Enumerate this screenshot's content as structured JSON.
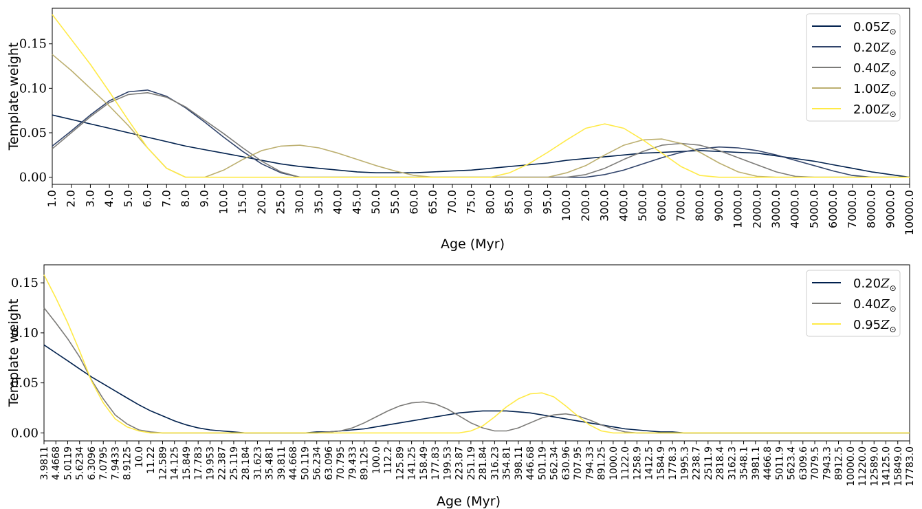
{
  "chart_data": [
    {
      "type": "line",
      "xlabel": "Age (Myr)",
      "ylabel": "Template weight",
      "ylim": [
        -0.008,
        0.19
      ],
      "yticks": [
        "0.00",
        "0.05",
        "0.10",
        "0.15"
      ],
      "ytick_values": [
        0.0,
        0.05,
        0.1,
        0.15
      ],
      "categories": [
        "1.0",
        "2.0",
        "3.0",
        "4.0",
        "5.0",
        "6.0",
        "7.0",
        "8.0",
        "9.0",
        "10.0",
        "15.0",
        "20.0",
        "25.0",
        "30.0",
        "35.0",
        "40.0",
        "45.0",
        "50.0",
        "55.0",
        "60.0",
        "65.0",
        "70.0",
        "75.0",
        "80.0",
        "85.0",
        "90.0",
        "95.0",
        "100.0",
        "200.0",
        "300.0",
        "400.0",
        "500.0",
        "600.0",
        "700.0",
        "800.0",
        "900.0",
        "1000.0",
        "2000.0",
        "3000.0",
        "4000.0",
        "5000.0",
        "6000.0",
        "7000.0",
        "8000.0",
        "9000.0",
        "10000.0"
      ],
      "legend_position": "top-right",
      "grid": false,
      "series": [
        {
          "name": "0.05",
          "color": "#00204d",
          "values": [
            0.07,
            0.065,
            0.06,
            0.055,
            0.05,
            0.045,
            0.04,
            0.035,
            0.031,
            0.027,
            0.023,
            0.019,
            0.015,
            0.012,
            0.01,
            0.008,
            0.006,
            0.005,
            0.005,
            0.005,
            0.006,
            0.007,
            0.008,
            0.01,
            0.012,
            0.014,
            0.016,
            0.019,
            0.021,
            0.023,
            0.025,
            0.027,
            0.028,
            0.029,
            0.03,
            0.029,
            0.028,
            0.027,
            0.024,
            0.021,
            0.018,
            0.014,
            0.01,
            0.006,
            0.003,
            0.0
          ]
        },
        {
          "name": "0.20",
          "color": "#31446b",
          "values": [
            0.035,
            0.052,
            0.07,
            0.086,
            0.096,
            0.098,
            0.091,
            0.078,
            0.062,
            0.045,
            0.029,
            0.015,
            0.005,
            0.0,
            0.0,
            0.0,
            0.0,
            0.0,
            0.0,
            0.0,
            0.0,
            0.0,
            0.0,
            0.0,
            0.0,
            0.0,
            0.0,
            0.0,
            0.0,
            0.003,
            0.008,
            0.015,
            0.022,
            0.028,
            0.032,
            0.034,
            0.033,
            0.03,
            0.025,
            0.019,
            0.013,
            0.007,
            0.002,
            0.0,
            0.0,
            0.0
          ]
        },
        {
          "name": "0.40",
          "color": "#7c7b78",
          "values": [
            0.032,
            0.05,
            0.068,
            0.084,
            0.093,
            0.095,
            0.09,
            0.079,
            0.064,
            0.049,
            0.033,
            0.018,
            0.006,
            0.0,
            0.0,
            0.0,
            0.0,
            0.0,
            0.0,
            0.0,
            0.0,
            0.0,
            0.0,
            0.0,
            0.0,
            0.0,
            0.0,
            0.0,
            0.003,
            0.01,
            0.02,
            0.029,
            0.036,
            0.038,
            0.036,
            0.03,
            0.022,
            0.014,
            0.006,
            0.001,
            0.0,
            0.0,
            0.0,
            0.0,
            0.0,
            0.0
          ]
        },
        {
          "name": "1.00",
          "color": "#bcaf6f",
          "values": [
            0.138,
            0.12,
            0.1,
            0.08,
            0.058,
            0.033,
            0.01,
            0.0,
            0.0,
            0.008,
            0.02,
            0.03,
            0.035,
            0.036,
            0.033,
            0.027,
            0.02,
            0.013,
            0.007,
            0.002,
            0.0,
            0.0,
            0.0,
            0.0,
            0.0,
            0.0,
            0.0,
            0.005,
            0.013,
            0.025,
            0.036,
            0.042,
            0.043,
            0.038,
            0.028,
            0.016,
            0.006,
            0.001,
            0.0,
            0.0,
            0.0,
            0.0,
            0.0,
            0.0,
            0.0,
            0.0
          ]
        },
        {
          "name": "2.00",
          "color": "#ffea46",
          "values": [
            0.183,
            0.155,
            0.127,
            0.096,
            0.064,
            0.033,
            0.01,
            0.0,
            0.0,
            0.0,
            0.0,
            0.0,
            0.0,
            0.0,
            0.0,
            0.0,
            0.0,
            0.0,
            0.0,
            0.0,
            0.0,
            0.0,
            0.0,
            0.0,
            0.005,
            0.015,
            0.028,
            0.042,
            0.055,
            0.06,
            0.055,
            0.042,
            0.027,
            0.012,
            0.002,
            0.0,
            0.0,
            0.0,
            0.0,
            0.0,
            0.0,
            0.0,
            0.0,
            0.0,
            0.0,
            0.0
          ]
        }
      ]
    },
    {
      "type": "line",
      "xlabel": "Age (Myr)",
      "ylabel": "Template weight",
      "ylim": [
        -0.008,
        0.168
      ],
      "yticks": [
        "0.00",
        "0.05",
        "0.10",
        "0.15"
      ],
      "ytick_values": [
        0.0,
        0.05,
        0.1,
        0.15
      ],
      "categories": [
        "3.9811",
        "4.4668",
        "5.0119",
        "5.6234",
        "6.3096",
        "7.0795",
        "7.9433",
        "8.9125",
        "10.0",
        "11.22",
        "12.589",
        "14.125",
        "15.849",
        "17.783",
        "19.953",
        "22.387",
        "25.119",
        "28.184",
        "31.623",
        "35.481",
        "39.811",
        "44.668",
        "50.119",
        "56.234",
        "63.096",
        "70.795",
        "79.433",
        "89.125",
        "100.0",
        "112.2",
        "125.89",
        "141.25",
        "158.49",
        "177.83",
        "199.53",
        "223.87",
        "251.19",
        "281.84",
        "316.23",
        "354.81",
        "398.11",
        "446.68",
        "501.19",
        "562.34",
        "630.96",
        "707.95",
        "794.33",
        "891.25",
        "1000.0",
        "1122.0",
        "1258.9",
        "1412.5",
        "1584.9",
        "1778.3",
        "1995.3",
        "2238.7",
        "2511.9",
        "2818.4",
        "3162.3",
        "3548.1",
        "3981.1",
        "4466.8",
        "5011.9",
        "5623.4",
        "6309.6",
        "7079.5",
        "7943.3",
        "8912.5",
        "10000.0",
        "11220.0",
        "12589.0",
        "14125.0",
        "15849.0",
        "17783.0"
      ],
      "legend_position": "top-right",
      "grid": false,
      "series": [
        {
          "name": "0.20",
          "color": "#00204d",
          "values": [
            0.088,
            0.08,
            0.072,
            0.064,
            0.056,
            0.049,
            0.042,
            0.035,
            0.028,
            0.022,
            0.017,
            0.012,
            0.008,
            0.005,
            0.003,
            0.002,
            0.001,
            0.0,
            0.0,
            0.0,
            0.0,
            0.0,
            0.0,
            0.001,
            0.001,
            0.002,
            0.003,
            0.004,
            0.006,
            0.008,
            0.01,
            0.012,
            0.014,
            0.016,
            0.018,
            0.02,
            0.021,
            0.022,
            0.022,
            0.022,
            0.021,
            0.02,
            0.018,
            0.016,
            0.014,
            0.012,
            0.01,
            0.008,
            0.006,
            0.004,
            0.003,
            0.002,
            0.001,
            0.001,
            0.0,
            0.0,
            0.0,
            0.0,
            0.0,
            0.0,
            0.0,
            0.0,
            0.0,
            0.0,
            0.0,
            0.0,
            0.0,
            0.0,
            0.0,
            0.0,
            0.0,
            0.0,
            0.0,
            0.0
          ]
        },
        {
          "name": "0.40",
          "color": "#7c7b78",
          "values": [
            0.125,
            0.11,
            0.094,
            0.076,
            0.053,
            0.034,
            0.018,
            0.009,
            0.003,
            0.001,
            0.0,
            0.0,
            0.0,
            0.0,
            0.0,
            0.0,
            0.0,
            0.0,
            0.0,
            0.0,
            0.0,
            0.0,
            0.0,
            0.0,
            0.001,
            0.002,
            0.005,
            0.01,
            0.016,
            0.022,
            0.027,
            0.03,
            0.031,
            0.029,
            0.024,
            0.017,
            0.01,
            0.005,
            0.002,
            0.002,
            0.005,
            0.01,
            0.015,
            0.018,
            0.019,
            0.017,
            0.013,
            0.008,
            0.004,
            0.001,
            0.0,
            0.0,
            0.0,
            0.0,
            0.0,
            0.0,
            0.0,
            0.0,
            0.0,
            0.0,
            0.0,
            0.0,
            0.0,
            0.0,
            0.0,
            0.0,
            0.0,
            0.0,
            0.0,
            0.0,
            0.0,
            0.0,
            0.0,
            0.0
          ]
        },
        {
          "name": "0.95",
          "color": "#ffea46",
          "values": [
            0.158,
            0.135,
            0.11,
            0.082,
            0.052,
            0.03,
            0.014,
            0.006,
            0.002,
            0.0,
            0.0,
            0.0,
            0.0,
            0.0,
            0.0,
            0.0,
            0.0,
            0.0,
            0.0,
            0.0,
            0.0,
            0.0,
            0.0,
            0.0,
            0.0,
            0.0,
            0.0,
            0.0,
            0.0,
            0.0,
            0.0,
            0.0,
            0.0,
            0.0,
            0.0,
            0.0,
            0.002,
            0.007,
            0.016,
            0.026,
            0.034,
            0.039,
            0.04,
            0.036,
            0.027,
            0.017,
            0.008,
            0.002,
            0.0,
            0.0,
            0.0,
            0.0,
            0.0,
            0.0,
            0.0,
            0.0,
            0.0,
            0.0,
            0.0,
            0.0,
            0.0,
            0.0,
            0.0,
            0.0,
            0.0,
            0.0,
            0.0,
            0.0,
            0.0,
            0.0,
            0.0,
            0.0,
            0.0,
            0.0
          ]
        }
      ]
    }
  ]
}
